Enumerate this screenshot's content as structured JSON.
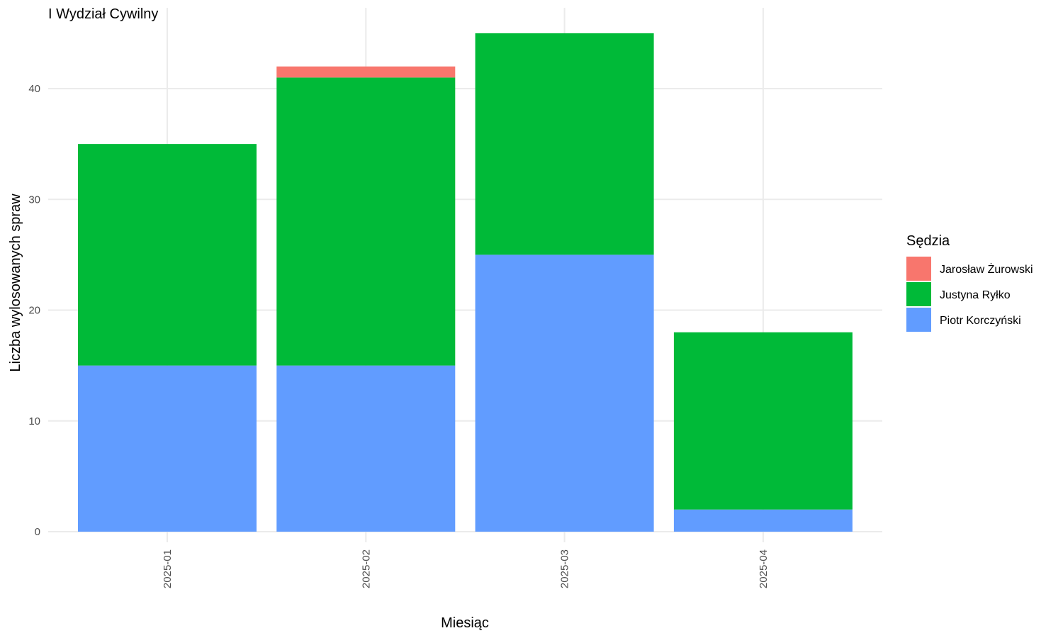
{
  "chart_data": {
    "type": "bar",
    "stacked": true,
    "title": "I Wydział Cywilny",
    "xlabel": "Miesiąc",
    "ylabel": "Liczba wylosowanych spraw",
    "ylim": [
      0,
      47
    ],
    "yticks": [
      0,
      10,
      20,
      30,
      40
    ],
    "grid": true,
    "legend_position": "right",
    "legend_title": "Sędzia",
    "categories": [
      "2025-01",
      "2025-02",
      "2025-03",
      "2025-04"
    ],
    "series": [
      {
        "name": "Jarosław Żurowski",
        "color": "#F8766D",
        "values": [
          0,
          1,
          0,
          0
        ]
      },
      {
        "name": "Justyna Ryłko",
        "color": "#00BA38",
        "values": [
          20,
          26,
          20,
          16
        ]
      },
      {
        "name": "Piotr Korczyński",
        "color": "#619CFF",
        "values": [
          15,
          15,
          25,
          2
        ]
      }
    ]
  }
}
